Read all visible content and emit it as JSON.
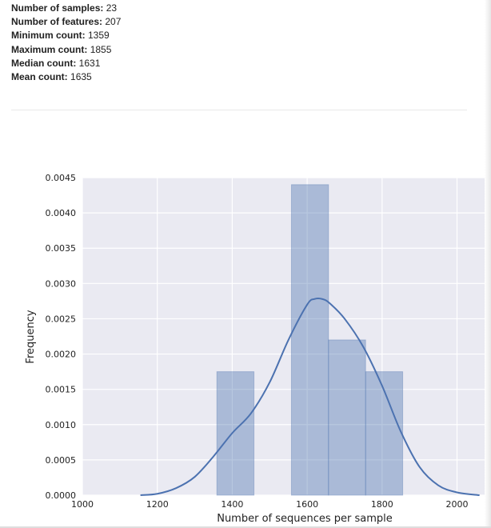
{
  "summary": [
    {
      "label": "Number of samples:",
      "value": "23"
    },
    {
      "label": "Number of features:",
      "value": "207"
    },
    {
      "label": "Minimum count:",
      "value": "1359"
    },
    {
      "label": "Maximum count:",
      "value": "1855"
    },
    {
      "label": "Median count:",
      "value": "1631"
    },
    {
      "label": "Mean count:",
      "value": "1635"
    }
  ],
  "chart_data": {
    "type": "bar",
    "title": "",
    "xlabel": "Number of sequences per sample",
    "ylabel": "Frequency",
    "xlim": [
      1000,
      2080
    ],
    "ylim": [
      0,
      0.0045
    ],
    "x_ticks": [
      1000,
      1200,
      1400,
      1600,
      1800,
      2000
    ],
    "x_tick_labels": [
      "1000",
      "1200",
      "1400",
      "1600",
      "1800",
      "2000"
    ],
    "y_ticks": [
      0,
      0.0005,
      0.001,
      0.0015,
      0.002,
      0.0025,
      0.003,
      0.0035,
      0.004,
      0.0045
    ],
    "y_tick_labels": [
      "0.0000",
      "0.0005",
      "0.0010",
      "0.0015",
      "0.0020",
      "0.0025",
      "0.0030",
      "0.0035",
      "0.0040",
      "0.0045"
    ],
    "grid": true,
    "bins": [
      {
        "x0": 1359,
        "x1": 1458,
        "value": 0.00175
      },
      {
        "x0": 1458,
        "x1": 1558,
        "value": 0
      },
      {
        "x0": 1558,
        "x1": 1657,
        "value": 0.0044
      },
      {
        "x0": 1657,
        "x1": 1756,
        "value": 0.0022
      },
      {
        "x0": 1756,
        "x1": 1855,
        "value": 0.00175
      }
    ],
    "density_curve": {
      "x": [
        1155,
        1200,
        1250,
        1300,
        1350,
        1400,
        1450,
        1500,
        1550,
        1600,
        1620,
        1640,
        1660,
        1700,
        1750,
        1800,
        1850,
        1900,
        1950,
        2000,
        2060
      ],
      "y": [
        0,
        2e-05,
        0.0001,
        0.00026,
        0.00055,
        0.00088,
        0.00116,
        0.0016,
        0.0022,
        0.0027,
        0.00278,
        0.00278,
        0.00272,
        0.0025,
        0.0021,
        0.00155,
        0.0009,
        0.0004,
        0.00014,
        4e-05,
        0
      ]
    },
    "colors": {
      "plot_bg": "#eaeaf2",
      "grid": "#ffffff",
      "bar_fill": "#4c72b0",
      "bar_edge": "#4c72b0",
      "curve": "#4c72b0"
    }
  }
}
